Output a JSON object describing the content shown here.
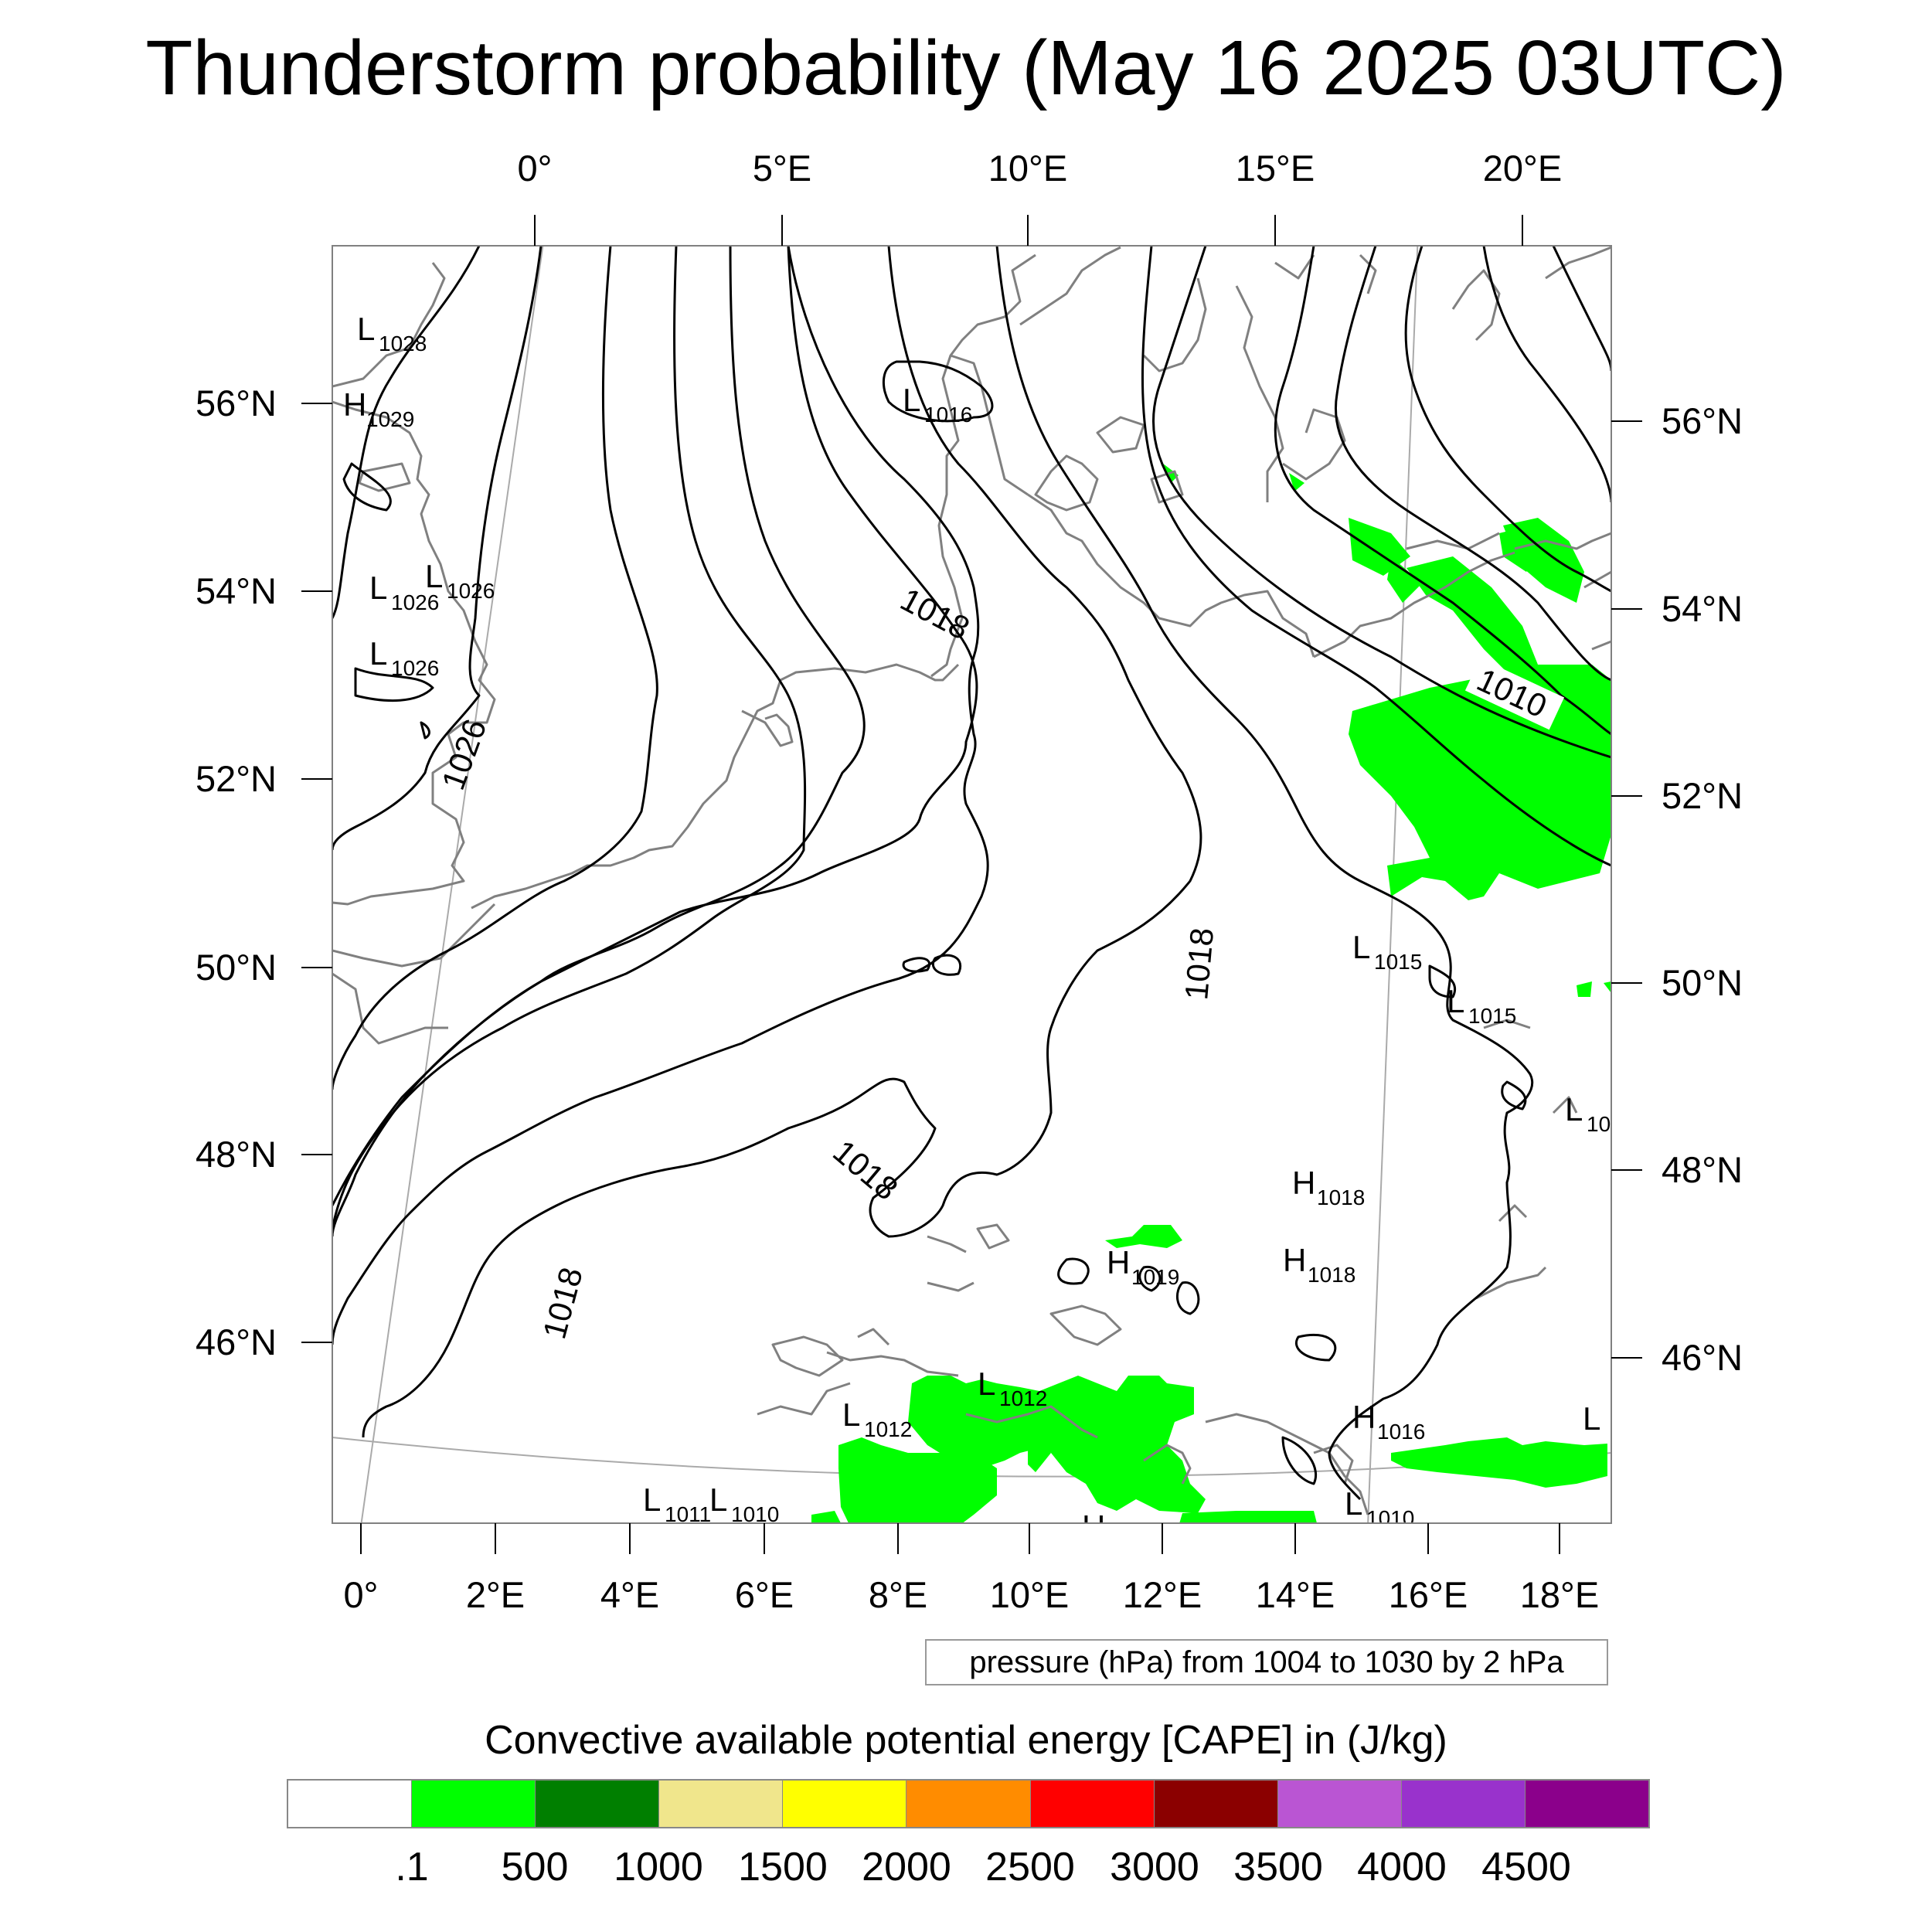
{
  "title": "Thunderstorm probability (May 16 2025 03UTC)",
  "top_lon_labels": [
    "0°",
    "5°E",
    "10°E",
    "15°E",
    "20°E"
  ],
  "bottom_lon_labels": [
    "0°",
    "2°E",
    "4°E",
    "6°E",
    "8°E",
    "10°E",
    "12°E",
    "14°E",
    "16°E",
    "18°E"
  ],
  "left_lat_labels": [
    "56°N",
    "54°N",
    "52°N",
    "50°N",
    "48°N",
    "46°N"
  ],
  "right_lat_labels": [
    "56°N",
    "54°N",
    "52°N",
    "50°N",
    "48°N",
    "46°N"
  ],
  "contour_info": "pressure (hPa) from 1004 to 1030 by 2 hPa",
  "contour_labels": [
    "1026",
    "1018",
    "1018",
    "1018",
    "1018",
    "1010"
  ],
  "pressure_centers": [
    {
      "type": "L",
      "value": "1028"
    },
    {
      "type": "H",
      "value": "1029"
    },
    {
      "type": "L",
      "value": "1016"
    },
    {
      "type": "L",
      "value": "1026"
    },
    {
      "type": "L",
      "value": "1026"
    },
    {
      "type": "L",
      "value": "1026"
    },
    {
      "type": "L",
      "value": "1015"
    },
    {
      "type": "L",
      "value": "1015"
    },
    {
      "type": "L",
      "value": "10"
    },
    {
      "type": "H",
      "value": "1018"
    },
    {
      "type": "H",
      "value": "1018"
    },
    {
      "type": "H",
      "value": "1019"
    },
    {
      "type": "L",
      "value": "1012"
    },
    {
      "type": "L",
      "value": "1012"
    },
    {
      "type": "H",
      "value": "1016"
    },
    {
      "type": "L",
      "value": ""
    },
    {
      "type": "L",
      "value": "1011"
    },
    {
      "type": "L",
      "value": "1010"
    },
    {
      "type": "L",
      "value": "1010"
    }
  ],
  "colorbar": {
    "title": "Convective available potential energy [CAPE] in (J/kg)",
    "colors": [
      "#ffffff",
      "#00ff00",
      "#007f00",
      "#f0e68c",
      "#ffff00",
      "#ff8c00",
      "#ff0000",
      "#8b0000",
      "#ba55d3",
      "#9932cc",
      "#8b008b"
    ],
    "labels": [
      ".1",
      "500",
      "1000",
      "1500",
      "2000",
      "2500",
      "3000",
      "3500",
      "4000",
      "4500"
    ]
  }
}
